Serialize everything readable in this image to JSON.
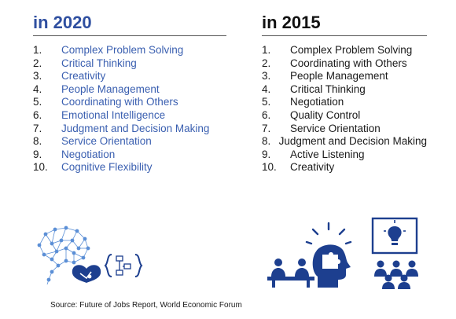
{
  "left": {
    "heading": "in  2020",
    "items": [
      {
        "num": "1.",
        "label": "Complex Problem Solving"
      },
      {
        "num": "2.",
        "label": "Critical Thinking"
      },
      {
        "num": "3.",
        "label": "Creativity"
      },
      {
        "num": "4.",
        "label": "People Management"
      },
      {
        "num": "5.",
        "label": "Coordinating with Others"
      },
      {
        "num": "6.",
        "label": "Emotional Intelligence"
      },
      {
        "num": "7.",
        "label": "Judgment and Decision Making"
      },
      {
        "num": "8.",
        "label": "Service Orientation"
      },
      {
        "num": "9.",
        "label": "Negotiation"
      },
      {
        "num": "10.",
        "label": "Cognitive Flexibility"
      }
    ]
  },
  "right": {
    "heading": "in  2015",
    "items": [
      {
        "num": "1.",
        "label": "Complex Problem Solving"
      },
      {
        "num": "2.",
        "label": "Coordinating with Others"
      },
      {
        "num": "3.",
        "label": "People Management"
      },
      {
        "num": "4.",
        "label": "Critical Thinking"
      },
      {
        "num": "5.",
        "label": "Negotiation"
      },
      {
        "num": "6.",
        "label": "Quality Control"
      },
      {
        "num": "7.",
        "label": "Service Orientation"
      },
      {
        "num": "8.",
        "label": "Judgment and Decision Making"
      },
      {
        "num": "9.",
        "label": "Active Listening"
      },
      {
        "num": "10.",
        "label": "Creativity"
      }
    ]
  },
  "illustrations": {
    "left": [
      "brain-network-icon",
      "puzzle-heart-icon",
      "code-diagram-icon"
    ],
    "right": [
      "interview-desk-icon",
      "head-puzzle-idea-icon",
      "presentation-lightbulb-icon"
    ]
  },
  "colors": {
    "accent_2020": "#2f4fa0",
    "accent_list": "#3a5fb0",
    "icon_blue": "#1d3f8f",
    "network_blue": "#5b8fd6"
  },
  "footer": {
    "source": "Source: Future of Jobs Report, World Economic Forum"
  }
}
